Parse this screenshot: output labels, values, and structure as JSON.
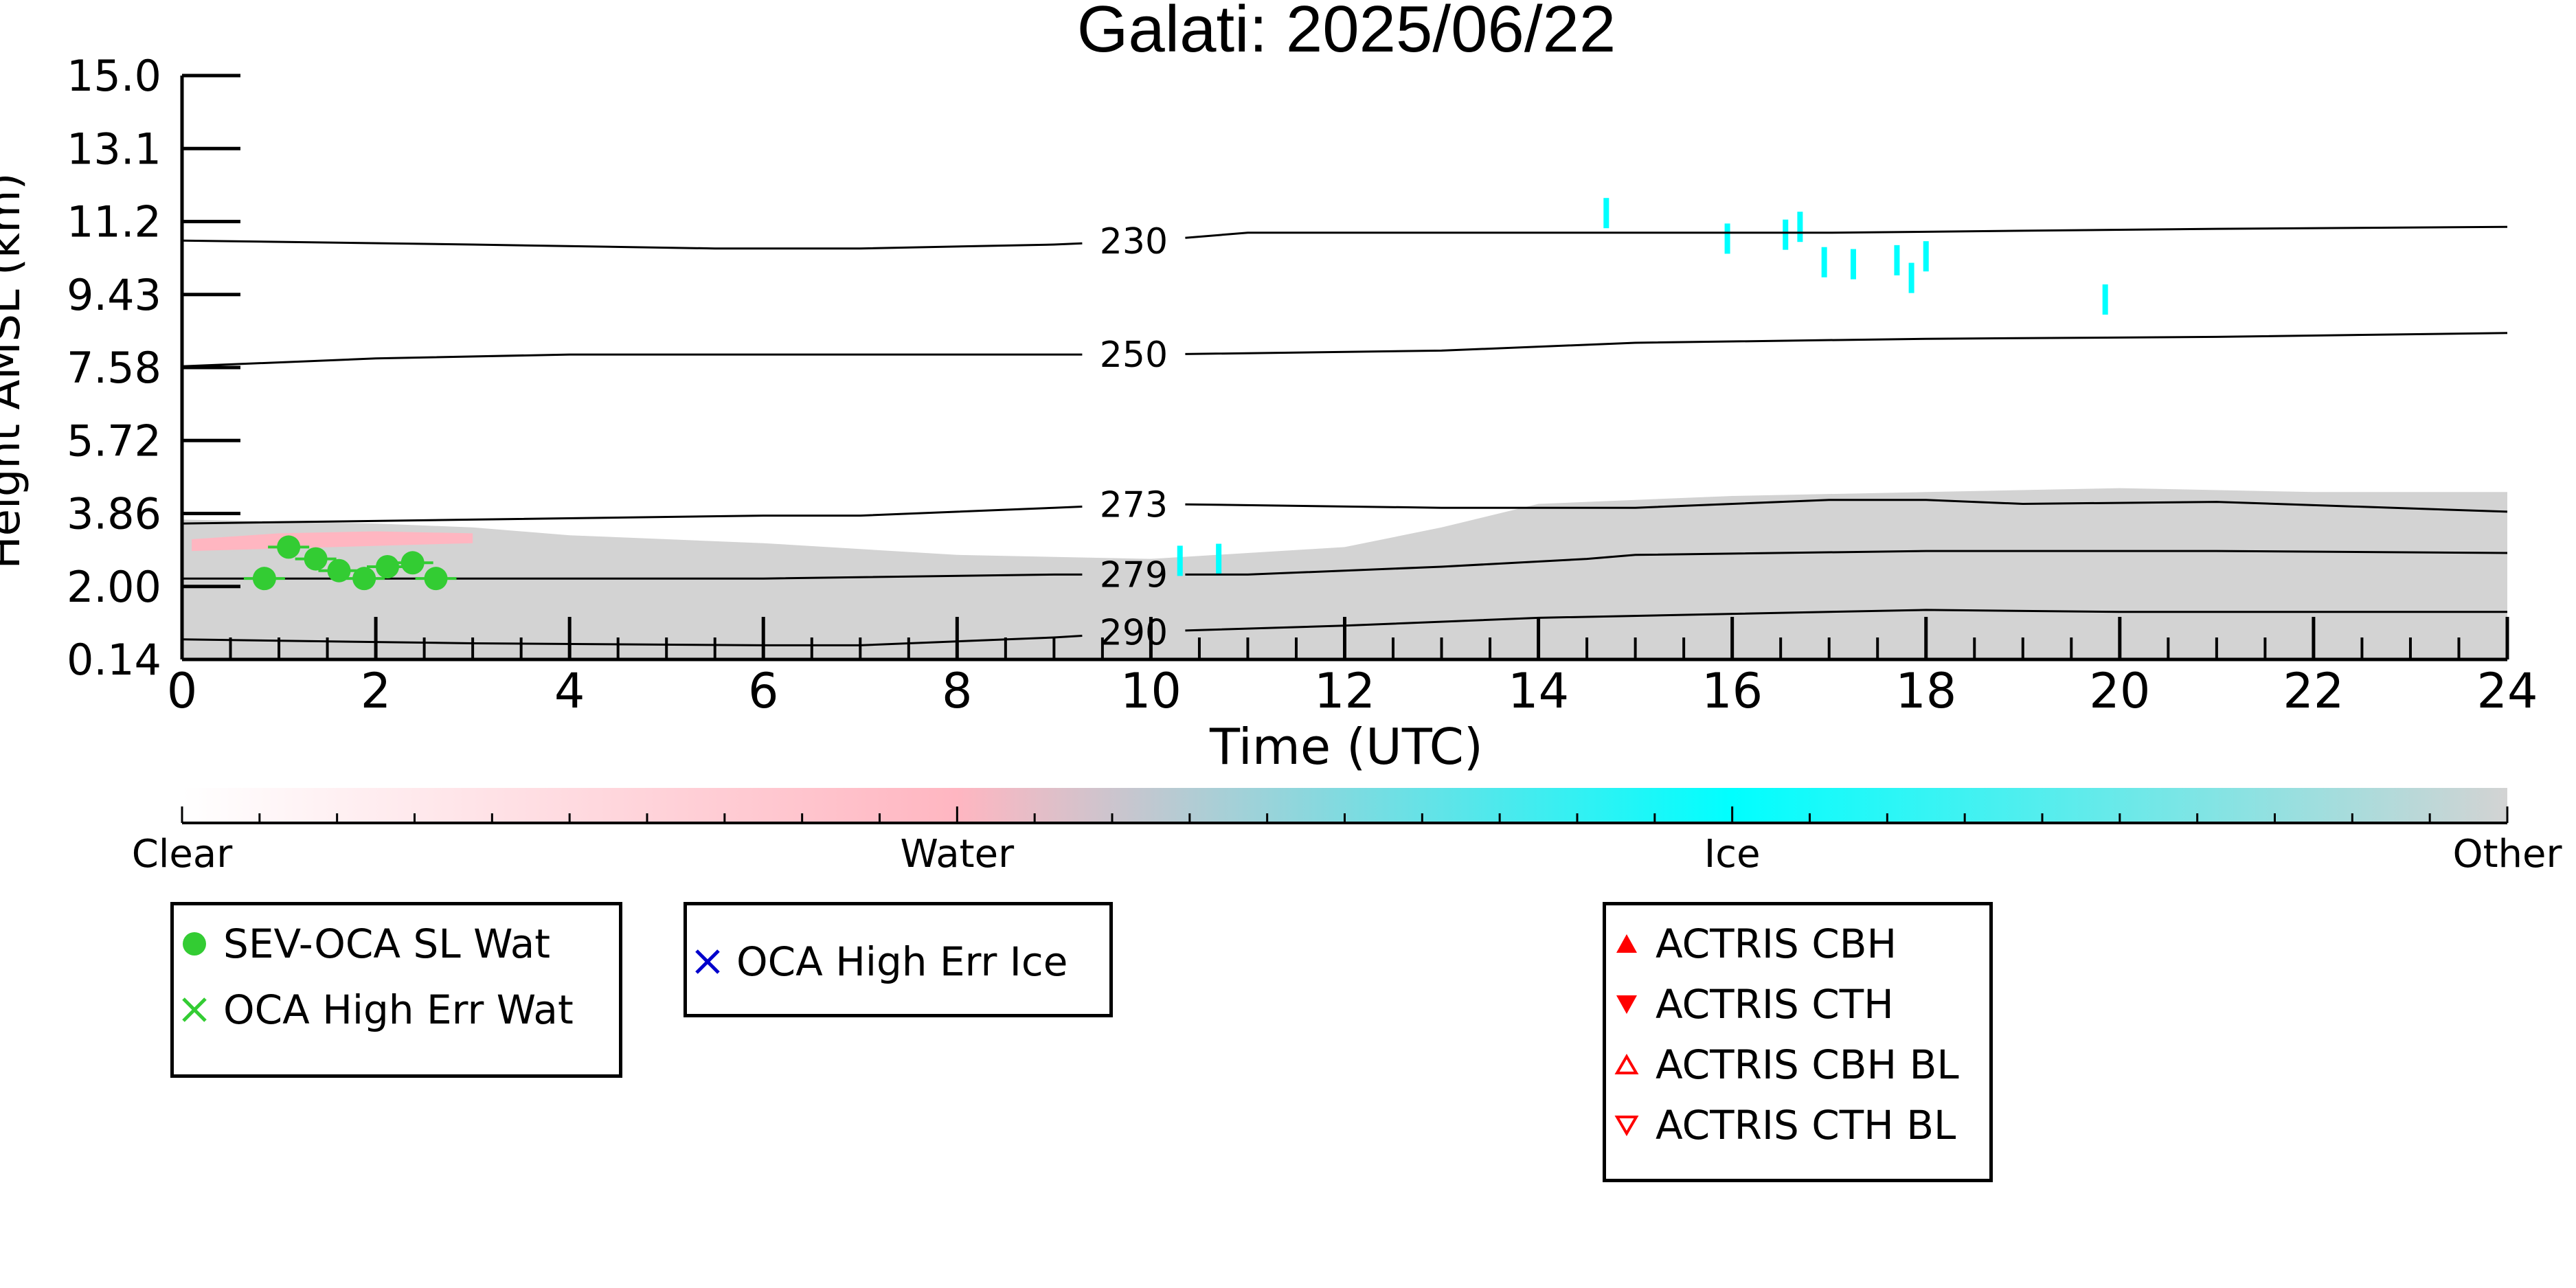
{
  "chart_data": {
    "type": "heatmap",
    "title": "Galati: 2025/06/22",
    "xlabel": "Time (UTC)",
    "ylabel": "Height AMSL (km)",
    "xlim": [
      0,
      24
    ],
    "ylim": [
      0.14,
      15.0
    ],
    "x_ticks": [
      "0",
      "2",
      "4",
      "6",
      "8",
      "10",
      "12",
      "14",
      "16",
      "18",
      "20",
      "22",
      "24"
    ],
    "y_ticks": [
      "0.14",
      "2.00",
      "3.86",
      "5.72",
      "7.58",
      "9.43",
      "11.2",
      "13.1",
      "15.0"
    ],
    "grid": false,
    "colorbar": {
      "labels": [
        "Clear",
        "Water",
        "Ice",
        "Other"
      ],
      "colors": [
        "#ffffff",
        "#ffb6c1",
        "#00ffff",
        "#d3d3d3"
      ]
    },
    "contour_lines": [
      {
        "label": "230",
        "points": [
          [
            0,
            10.8
          ],
          [
            3,
            10.7
          ],
          [
            5.5,
            10.6
          ],
          [
            7,
            10.6
          ],
          [
            9,
            10.7
          ],
          [
            10,
            10.8
          ],
          [
            11,
            11.0
          ],
          [
            13,
            11.0
          ],
          [
            15,
            11.0
          ],
          [
            17,
            11.0
          ],
          [
            19,
            11.05
          ],
          [
            21,
            11.1
          ],
          [
            24,
            11.15
          ]
        ]
      },
      {
        "label": "250",
        "points": [
          [
            0,
            7.6
          ],
          [
            2,
            7.8
          ],
          [
            4,
            7.9
          ],
          [
            6,
            7.9
          ],
          [
            9,
            7.9
          ],
          [
            10,
            7.9
          ],
          [
            13,
            8.0
          ],
          [
            15,
            8.2
          ],
          [
            18,
            8.3
          ],
          [
            21,
            8.35
          ],
          [
            24,
            8.45
          ]
        ]
      },
      {
        "label": "273",
        "points": [
          [
            0,
            3.6
          ],
          [
            3,
            3.7
          ],
          [
            6,
            3.8
          ],
          [
            7,
            3.8
          ],
          [
            9,
            4.0
          ],
          [
            10,
            4.1
          ],
          [
            13,
            4.0
          ],
          [
            15,
            4.0
          ],
          [
            17,
            4.2
          ],
          [
            18,
            4.2
          ],
          [
            19,
            4.1
          ],
          [
            21,
            4.15
          ],
          [
            24,
            3.9
          ]
        ]
      },
      {
        "label": "279",
        "points": [
          [
            0,
            2.2
          ],
          [
            3,
            2.2
          ],
          [
            6,
            2.2
          ],
          [
            9,
            2.3
          ],
          [
            10,
            2.3
          ],
          [
            11,
            2.3
          ],
          [
            13,
            2.5
          ],
          [
            14.5,
            2.7
          ],
          [
            15,
            2.8
          ],
          [
            18,
            2.9
          ],
          [
            21,
            2.9
          ],
          [
            24,
            2.85
          ]
        ]
      },
      {
        "label": "290",
        "points": [
          [
            0,
            0.65
          ],
          [
            3,
            0.55
          ],
          [
            6,
            0.5
          ],
          [
            7,
            0.5
          ],
          [
            9,
            0.7
          ],
          [
            10,
            0.85
          ],
          [
            12,
            1.0
          ],
          [
            14,
            1.2
          ],
          [
            16,
            1.3
          ],
          [
            18,
            1.4
          ],
          [
            20,
            1.35
          ],
          [
            22,
            1.35
          ],
          [
            24,
            1.35
          ]
        ]
      }
    ],
    "cloud_regions": [
      {
        "class": "Other",
        "color": "#d3d3d3",
        "upper": [
          [
            0,
            3.7
          ],
          [
            2,
            3.6
          ],
          [
            3,
            3.5
          ],
          [
            4,
            3.3
          ],
          [
            6,
            3.1
          ],
          [
            8,
            2.8
          ],
          [
            10,
            2.7
          ],
          [
            12,
            3.0
          ],
          [
            13,
            3.5
          ],
          [
            14,
            4.1
          ],
          [
            16,
            4.3
          ],
          [
            18,
            4.4
          ],
          [
            20,
            4.5
          ],
          [
            22,
            4.4
          ],
          [
            24,
            4.4
          ]
        ]
      },
      {
        "class": "Water",
        "color": "#ffb6c1",
        "upper": [
          [
            0.1,
            3.2
          ],
          [
            1,
            3.35
          ],
          [
            2,
            3.4
          ],
          [
            3,
            3.35
          ]
        ],
        "lower": [
          [
            0.1,
            2.9
          ],
          [
            3,
            3.1
          ]
        ]
      },
      {
        "class": "Ice",
        "color": "#00ffff",
        "patches": [
          [
            10.3,
            2.65
          ],
          [
            10.7,
            2.7
          ],
          [
            14.7,
            11.5
          ],
          [
            15.95,
            10.85
          ],
          [
            16.55,
            10.95
          ],
          [
            16.7,
            11.15
          ],
          [
            16.95,
            10.25
          ],
          [
            17.25,
            10.2
          ],
          [
            17.7,
            10.3
          ],
          [
            17.85,
            9.85
          ],
          [
            18.0,
            10.4
          ],
          [
            19.85,
            9.3
          ]
        ]
      }
    ],
    "series": [
      {
        "name": "SEV-OCA SL Wat",
        "marker": "circle",
        "color": "#33cc33",
        "x": [
          0.85,
          1.1,
          1.38,
          1.62,
          1.88,
          2.12,
          2.38,
          2.62
        ],
        "y": [
          2.2,
          3.0,
          2.7,
          2.4,
          2.2,
          2.5,
          2.6,
          2.2
        ]
      }
    ],
    "legends": [
      {
        "entries": [
          {
            "label": "SEV-OCA SL Wat",
            "marker": "circle",
            "color": "#33cc33"
          },
          {
            "label": "OCA High Err Wat",
            "marker": "x",
            "color": "#33cc33"
          }
        ]
      },
      {
        "entries": [
          {
            "label": "OCA High Err Ice",
            "marker": "x",
            "color": "#0000cc"
          }
        ]
      },
      {
        "entries": [
          {
            "label": "ACTRIS CBH",
            "marker": "triangle-up",
            "color": "#ff0000"
          },
          {
            "label": "ACTRIS CTH",
            "marker": "triangle-down",
            "color": "#ff0000"
          },
          {
            "label": "ACTRIS CBH BL",
            "marker": "triangle-up-open",
            "color": "#ff0000"
          },
          {
            "label": "ACTRIS CTH BL",
            "marker": "triangle-down-open",
            "color": "#ff0000"
          }
        ]
      }
    ]
  }
}
